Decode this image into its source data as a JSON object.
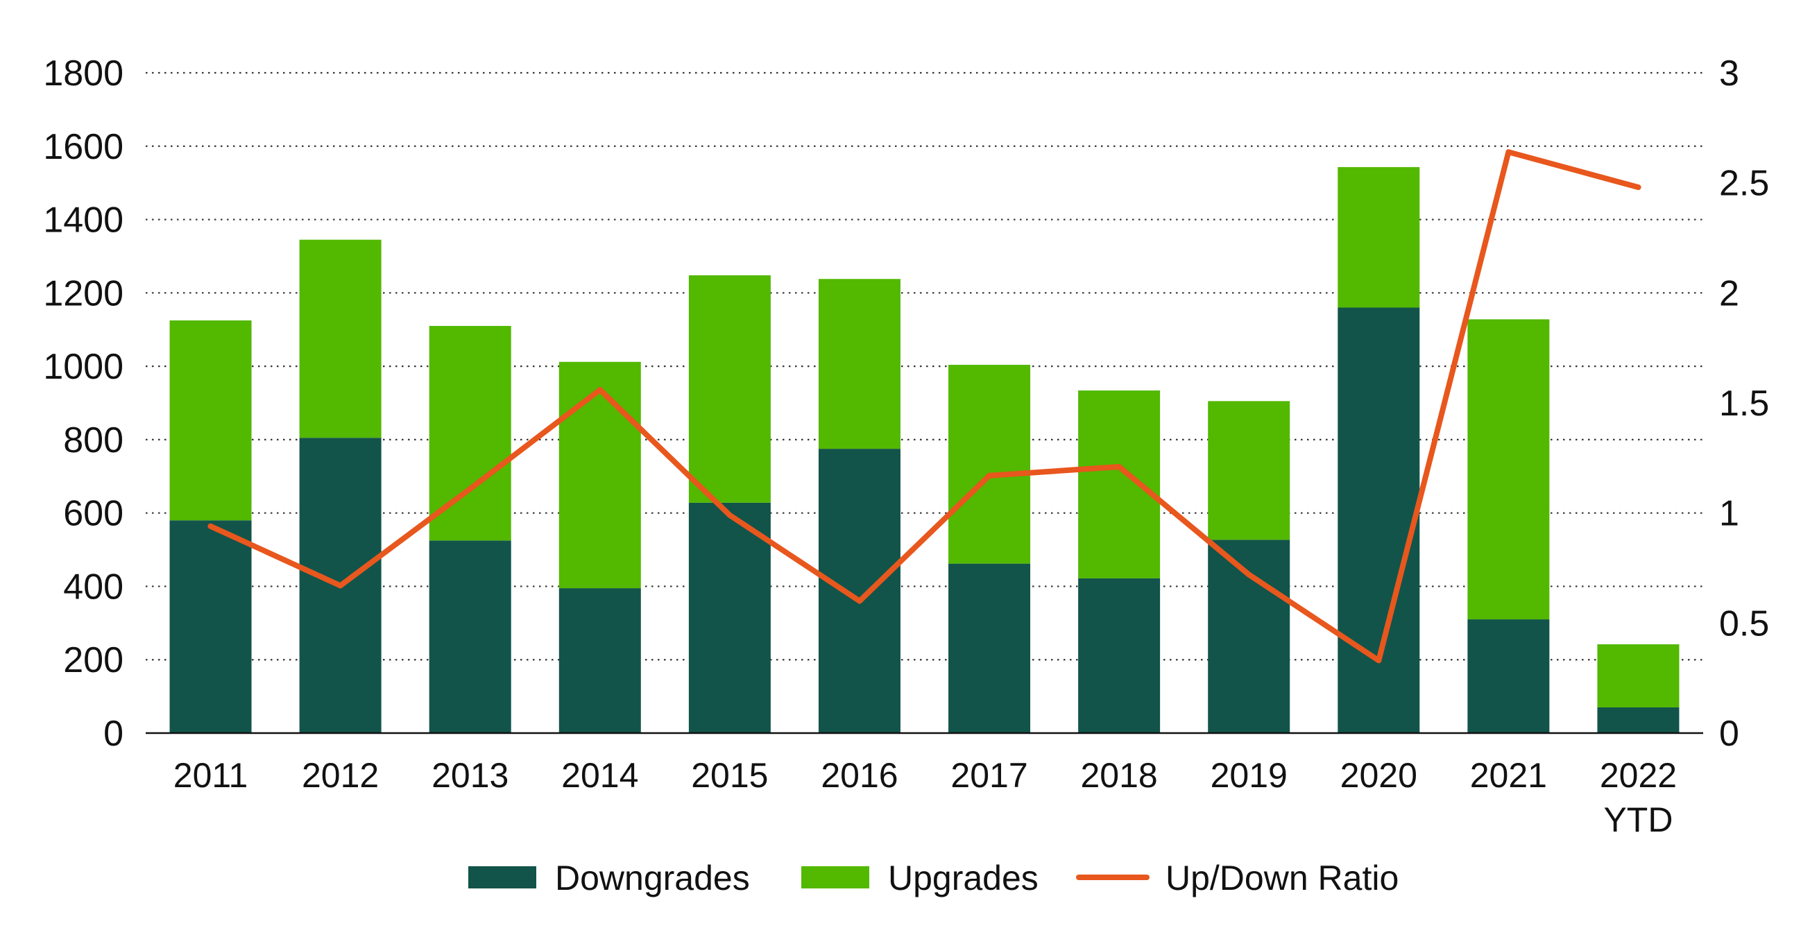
{
  "chart_data": {
    "type": "bar",
    "stacked": true,
    "title": "",
    "xlabel": "",
    "ylabel": "",
    "categories": [
      [
        "2011"
      ],
      [
        "2012"
      ],
      [
        "2013"
      ],
      [
        "2014"
      ],
      [
        "2015"
      ],
      [
        "2016"
      ],
      [
        "2017"
      ],
      [
        "2018"
      ],
      [
        "2019"
      ],
      [
        "2020"
      ],
      [
        "2021"
      ],
      [
        "2022",
        "YTD"
      ]
    ],
    "series": [
      {
        "name": "Downgrades",
        "kind": "bar",
        "axis": "left",
        "color": "#12544a",
        "values": [
          580,
          805,
          525,
          395,
          628,
          775,
          462,
          422,
          527,
          1160,
          310,
          70
        ]
      },
      {
        "name": "Upgrades",
        "kind": "bar",
        "axis": "left",
        "color": "#52b800",
        "values": [
          545,
          540,
          585,
          617,
          620,
          463,
          542,
          512,
          378,
          383,
          818,
          172
        ]
      },
      {
        "name": "Up/Down Ratio",
        "kind": "line",
        "axis": "right",
        "color": "#e8571d",
        "values": [
          0.94,
          0.67,
          1.11,
          1.56,
          0.99,
          0.6,
          1.17,
          1.21,
          0.72,
          0.33,
          2.64,
          2.48
        ]
      }
    ],
    "left_axis": {
      "ylim": [
        0,
        1800
      ],
      "ticks": [
        "0",
        "200",
        "400",
        "600",
        "800",
        "1000",
        "1200",
        "1400",
        "1600",
        "1800"
      ]
    },
    "right_axis": {
      "ylim": [
        0,
        3
      ],
      "ticks": [
        "0",
        "0.5",
        "1",
        "1.5",
        "2",
        "2.5",
        "3"
      ]
    },
    "grid": "horizontal-dotted",
    "legend": [
      "Downgrades",
      "Upgrades",
      "Up/Down Ratio"
    ],
    "legend_position": "bottom"
  }
}
